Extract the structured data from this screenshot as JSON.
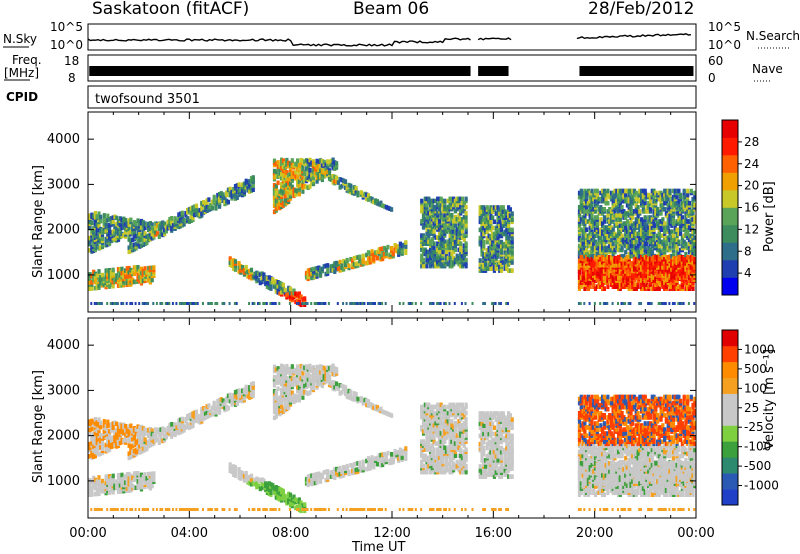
{
  "header": {
    "station": "Saskatoon (fitACF)",
    "beam": "Beam 06",
    "date": "28/Feb/2012"
  },
  "strip_labels": {
    "nsky": "N.Sky",
    "nsearch": "N.Search",
    "freq": "Freq.",
    "freq_unit": "[MHz]",
    "nave": "Nave",
    "cpid": "CPID",
    "cpid_value": "twofsound 3501",
    "nsky_ticks": [
      "10^5",
      "10^0"
    ],
    "nsearch_ticks": [
      "10^5",
      "10^0"
    ],
    "freq_ticks": [
      "18",
      "8"
    ],
    "nave_ticks": [
      "60",
      "0"
    ]
  },
  "colors": {
    "power_scale": [
      "#0000ee",
      "#1f3fb0",
      "#2e6e8a",
      "#3c8c5e",
      "#5aa45a",
      "#c8c828",
      "#f0a000",
      "#ff6000",
      "#ff1a00",
      "#e60000"
    ],
    "velocity_scale": [
      "#e00000",
      "#ff4000",
      "#ff8c00",
      "#f5a020",
      "#c8c8c8",
      "#c8c8c8",
      "#7fd040",
      "#3ca03c",
      "#2e8a6e",
      "#2a5ab4",
      "#2040c8"
    ]
  },
  "chart_data": [
    {
      "type": "heatmap",
      "panel": "power",
      "ylabel": "Slant Range [km]",
      "xlabel": "",
      "yticks": [
        "1000",
        "2000",
        "3000",
        "4000"
      ],
      "xticks": [
        "00:00",
        "04:00",
        "08:00",
        "12:00",
        "16:00",
        "20:00",
        "00:00"
      ],
      "ylim": [
        180,
        4600
      ],
      "xlim": [
        0,
        24
      ],
      "colorbar_label": "Power [dB]",
      "colorbar_ticks": [
        "4",
        "8",
        "12",
        "16",
        "20",
        "24",
        "28"
      ],
      "data_gaps_hours": [
        [
          16.7,
          19.3
        ]
      ]
    },
    {
      "type": "heatmap",
      "panel": "velocity",
      "ylabel": "Slant Range [km]",
      "xlabel": "Time UT",
      "yticks": [
        "1000",
        "2000",
        "3000",
        "4000"
      ],
      "xticks": [
        "00:00",
        "04:00",
        "08:00",
        "12:00",
        "16:00",
        "20:00",
        "00:00"
      ],
      "ylim": [
        180,
        4600
      ],
      "xlim": [
        0,
        24
      ],
      "colorbar_label": "Velocity [m s⁻¹]",
      "colorbar_ticks": [
        "1000",
        "500",
        "100",
        "25",
        "-25",
        "-100",
        "-500",
        "-1000"
      ],
      "data_gaps_hours": [
        [
          16.7,
          19.3
        ]
      ]
    }
  ]
}
